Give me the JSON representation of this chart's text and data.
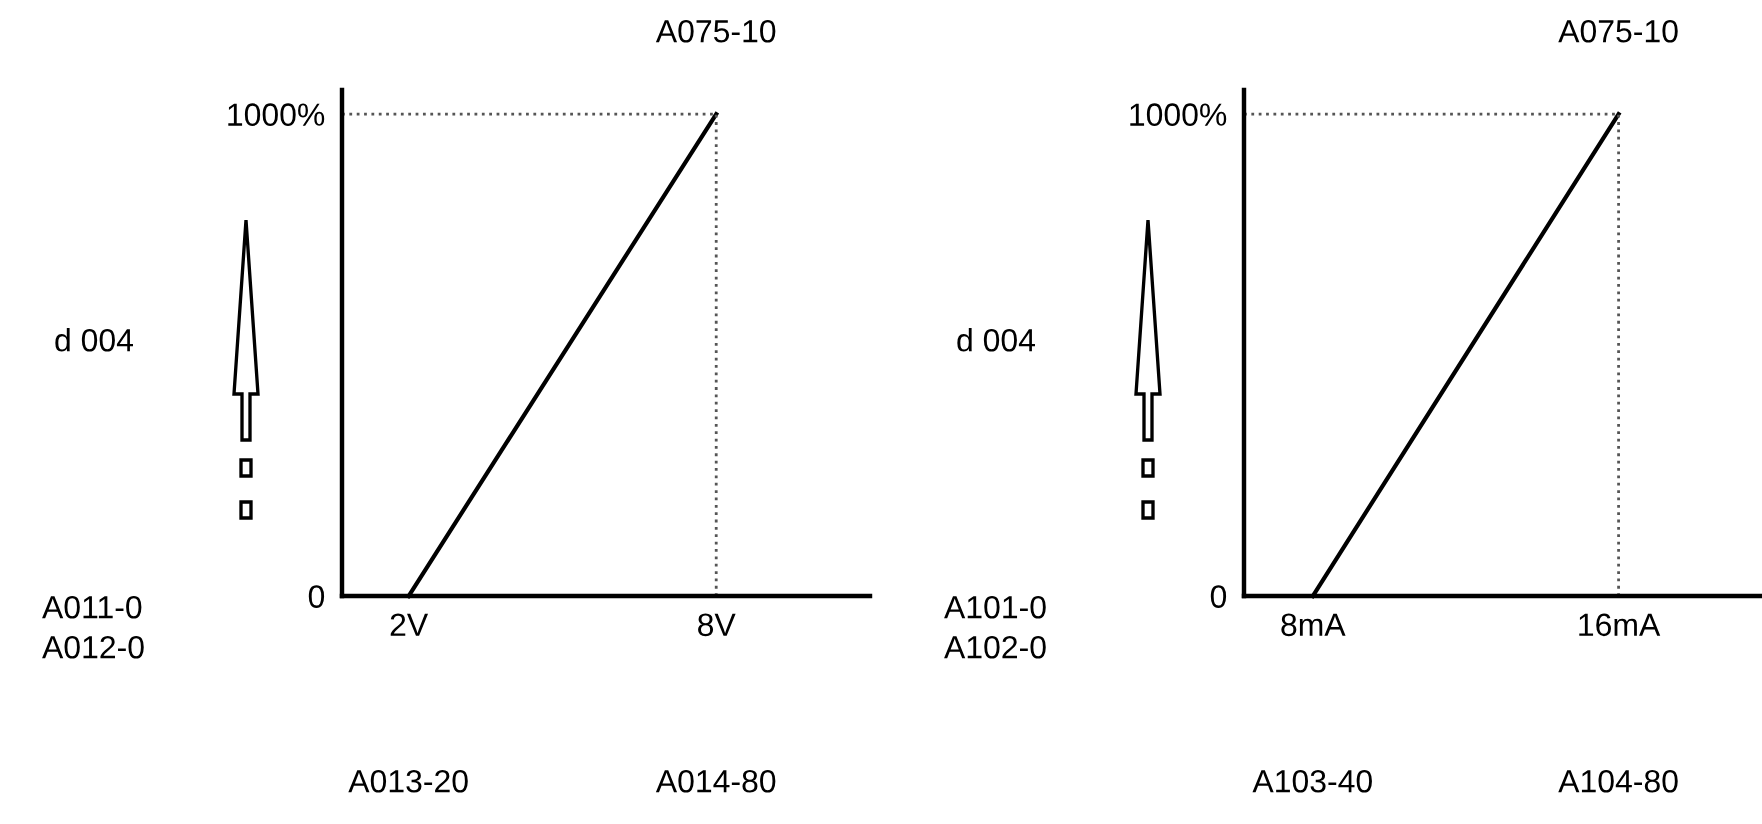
{
  "chart_data": [
    {
      "type": "line",
      "title": "A075-10",
      "ylabel": "d 004",
      "annotations": [
        "A011-0",
        "A012-0",
        "A013-20",
        "A014-80"
      ],
      "series": [
        {
          "color": "#000000",
          "x": [
            2,
            8
          ],
          "values": [
            0,
            1000
          ]
        }
      ],
      "xlim": [
        0.7,
        11
      ],
      "ylim": [
        0,
        1050
      ],
      "xticks": [
        {
          "value": 2,
          "label": "2V"
        },
        {
          "value": 8,
          "label": "8V"
        }
      ],
      "yticks": [
        0,
        {
          "value": 1000,
          "label": "1000%"
        }
      ],
      "ref_lines": [
        {
          "axis": "x",
          "value": 8,
          "color": "#555555",
          "line_style": "dotted"
        },
        {
          "axis": "y",
          "value": 1000,
          "color": "#555555",
          "line_style": "dotted"
        }
      ]
    },
    {
      "type": "line",
      "title": "A075-10",
      "ylabel": "d 004",
      "annotations": [
        "A101-0",
        "A102-0",
        "A103-40",
        "A104-80"
      ],
      "series": [
        {
          "color": "#000000",
          "x": [
            8,
            16
          ],
          "values": [
            0,
            1000
          ]
        }
      ],
      "xlim": [
        6.2,
        19.7
      ],
      "ylim": [
        0,
        1050
      ],
      "xticks": [
        {
          "value": 8,
          "label": "8mA"
        },
        {
          "value": 16,
          "label": "16mA"
        }
      ],
      "yticks": [
        0,
        {
          "value": 1000,
          "label": "1000%"
        }
      ],
      "ref_lines": [
        {
          "axis": "x",
          "value": 16,
          "color": "#555555",
          "line_style": "dotted"
        },
        {
          "axis": "y",
          "value": 1000,
          "color": "#555555",
          "line_style": "dotted"
        }
      ]
    }
  ]
}
